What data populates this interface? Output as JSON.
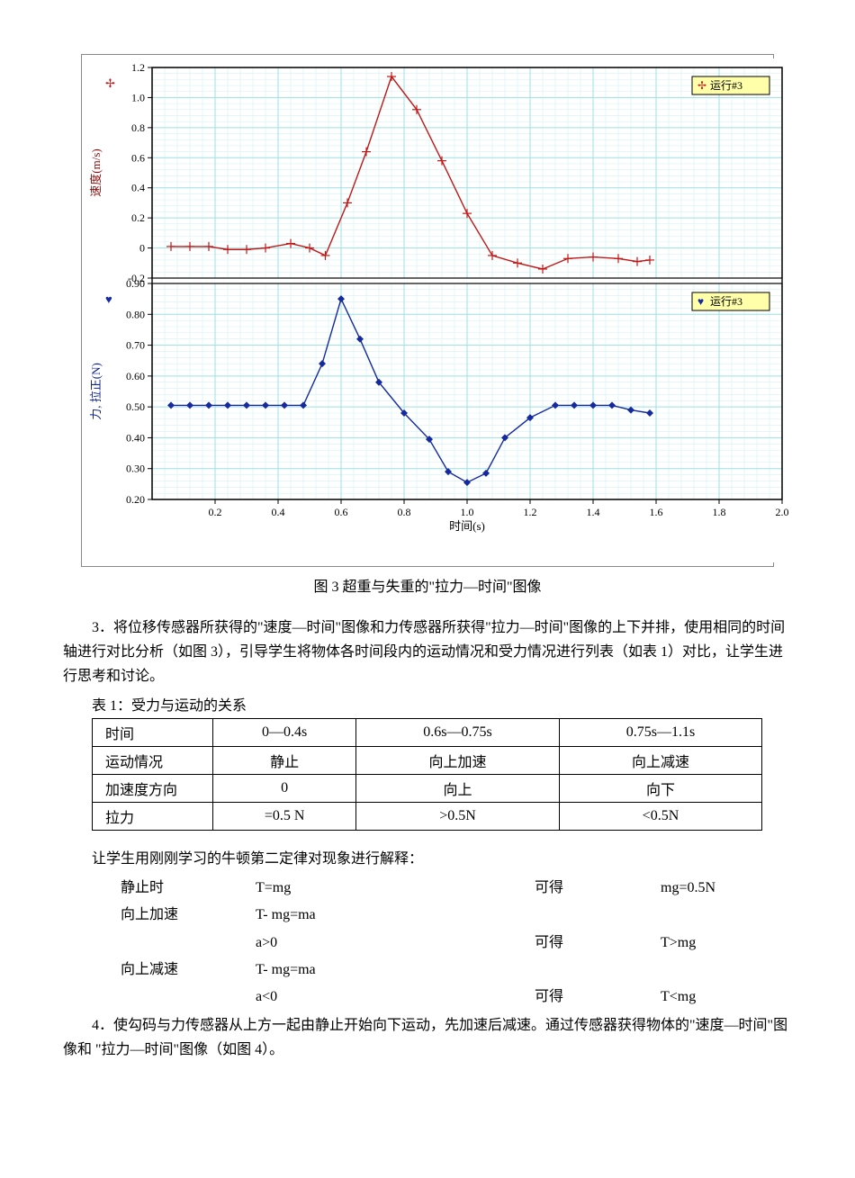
{
  "chart": {
    "caption": "图 3 超重与失重的\"拉力—时间\"图像",
    "background_color": "#ffffff",
    "grid_minor_color": "#d6f1f1",
    "grid_major_color": "#9fe0e0",
    "axis_color": "#000000",
    "axis_line_width": 1.2,
    "tick_font_size": 12,
    "x_axis": {
      "label": "时间(s)",
      "min": 0,
      "max": 2.0,
      "tick_step": 0.2,
      "ticks": [
        "0.2",
        "0.4",
        "0.6",
        "0.8",
        "1.0",
        "1.2",
        "1.4",
        "1.6",
        "1.8",
        "2.0"
      ]
    },
    "top_panel": {
      "y_label": "速度(m/s)",
      "y_label_color": "#8b0c0c",
      "ymin": -0.2,
      "ymax": 1.2,
      "ytick_step": 0.2,
      "yticks": [
        "-0.2",
        "0",
        "0.2",
        "0.4",
        "0.6",
        "0.8",
        "1.0",
        "1.2"
      ],
      "series_color": "#c11717",
      "line_width": 1.4,
      "marker": "plus",
      "marker_size": 5,
      "legend": {
        "label": "运行#3",
        "symbol": "✢",
        "box_bg": "#ffffaa",
        "box_border": "#000000"
      },
      "points": [
        [
          0.06,
          0.01
        ],
        [
          0.12,
          0.01
        ],
        [
          0.18,
          0.01
        ],
        [
          0.24,
          -0.01
        ],
        [
          0.3,
          -0.01
        ],
        [
          0.36,
          0.0
        ],
        [
          0.44,
          0.03
        ],
        [
          0.5,
          0.0
        ],
        [
          0.55,
          -0.05
        ],
        [
          0.62,
          0.3
        ],
        [
          0.68,
          0.64
        ],
        [
          0.76,
          1.14
        ],
        [
          0.84,
          0.92
        ],
        [
          0.92,
          0.58
        ],
        [
          1.0,
          0.23
        ],
        [
          1.08,
          -0.05
        ],
        [
          1.16,
          -0.1
        ],
        [
          1.24,
          -0.14
        ],
        [
          1.32,
          -0.07
        ],
        [
          1.4,
          -0.06
        ],
        [
          1.48,
          -0.07
        ],
        [
          1.54,
          -0.09
        ],
        [
          1.58,
          -0.08
        ]
      ]
    },
    "bottom_panel": {
      "y_label": "力, 拉正(N)",
      "y_label_color": "#10258f",
      "ymin": 0.2,
      "ymax": 0.9,
      "ytick_step": 0.1,
      "yticks": [
        "0.20",
        "0.30",
        "0.40",
        "0.50",
        "0.60",
        "0.70",
        "0.80",
        "0.90"
      ],
      "series_color": "#142a9e",
      "line_width": 1.4,
      "marker": "diamond",
      "marker_size": 4,
      "legend": {
        "label": "运行#3",
        "symbol": "♥",
        "box_bg": "#ffffaa",
        "box_border": "#000000"
      },
      "points": [
        [
          0.06,
          0.505
        ],
        [
          0.12,
          0.505
        ],
        [
          0.18,
          0.505
        ],
        [
          0.24,
          0.505
        ],
        [
          0.3,
          0.505
        ],
        [
          0.36,
          0.505
        ],
        [
          0.42,
          0.505
        ],
        [
          0.48,
          0.505
        ],
        [
          0.54,
          0.64
        ],
        [
          0.6,
          0.85
        ],
        [
          0.66,
          0.72
        ],
        [
          0.72,
          0.58
        ],
        [
          0.8,
          0.48
        ],
        [
          0.88,
          0.395
        ],
        [
          0.94,
          0.29
        ],
        [
          1.0,
          0.255
        ],
        [
          1.06,
          0.285
        ],
        [
          1.12,
          0.4
        ],
        [
          1.2,
          0.465
        ],
        [
          1.28,
          0.505
        ],
        [
          1.34,
          0.505
        ],
        [
          1.4,
          0.505
        ],
        [
          1.46,
          0.505
        ],
        [
          1.52,
          0.49
        ],
        [
          1.58,
          0.48
        ]
      ]
    }
  },
  "paragraph3": "3．将位移传感器所获得的\"速度—时间\"图像和力传感器所获得\"拉力—时间\"图像的上下并排，使用相同的时间轴进行对比分析（如图 3），引导学生将物体各时间段内的运动情况和受力情况进行列表（如表 1）对比，让学生进行思考和讨论。",
  "table1": {
    "title": "表 1：受力与运动的关系",
    "rows": [
      {
        "h": "时间",
        "c1": "0—0.4s",
        "c2": "0.6s—0.75s",
        "c3": "0.75s—1.1s"
      },
      {
        "h": "运动情况",
        "c1": "静止",
        "c2": "向上加速",
        "c3": "向上减速"
      },
      {
        "h": "加速度方向",
        "c1": "0",
        "c2": "向上",
        "c3": "向下"
      },
      {
        "h": "拉力",
        "c1": "=0.5 N",
        "c2": ">0.5N",
        "c3": "<0.5N"
      }
    ]
  },
  "explain_intro": "让学生用刚刚学习的牛顿第二定律对现象进行解释：",
  "equations": [
    {
      "label": "静止时",
      "expr": "T=mg",
      "arrow": "可得",
      "result": "mg=0.5N"
    },
    {
      "label": "向上加速",
      "expr": "T- mg=ma",
      "arrow": "",
      "result": ""
    },
    {
      "label": "",
      "expr": " a>0",
      "arrow": "可得",
      "result": "T>mg"
    },
    {
      "label": "向上减速",
      "expr": "T- mg=ma",
      "arrow": "",
      "result": ""
    },
    {
      "label": "",
      "expr": " a<0",
      "arrow": "可得",
      "result": "T<mg"
    }
  ],
  "paragraph4": "4．使勾码与力传感器从上方一起由静止开始向下运动，先加速后减速。通过传感器获得物体的\"速度—时间\"图像和 \"拉力—时间\"图像（如图 4）。"
}
